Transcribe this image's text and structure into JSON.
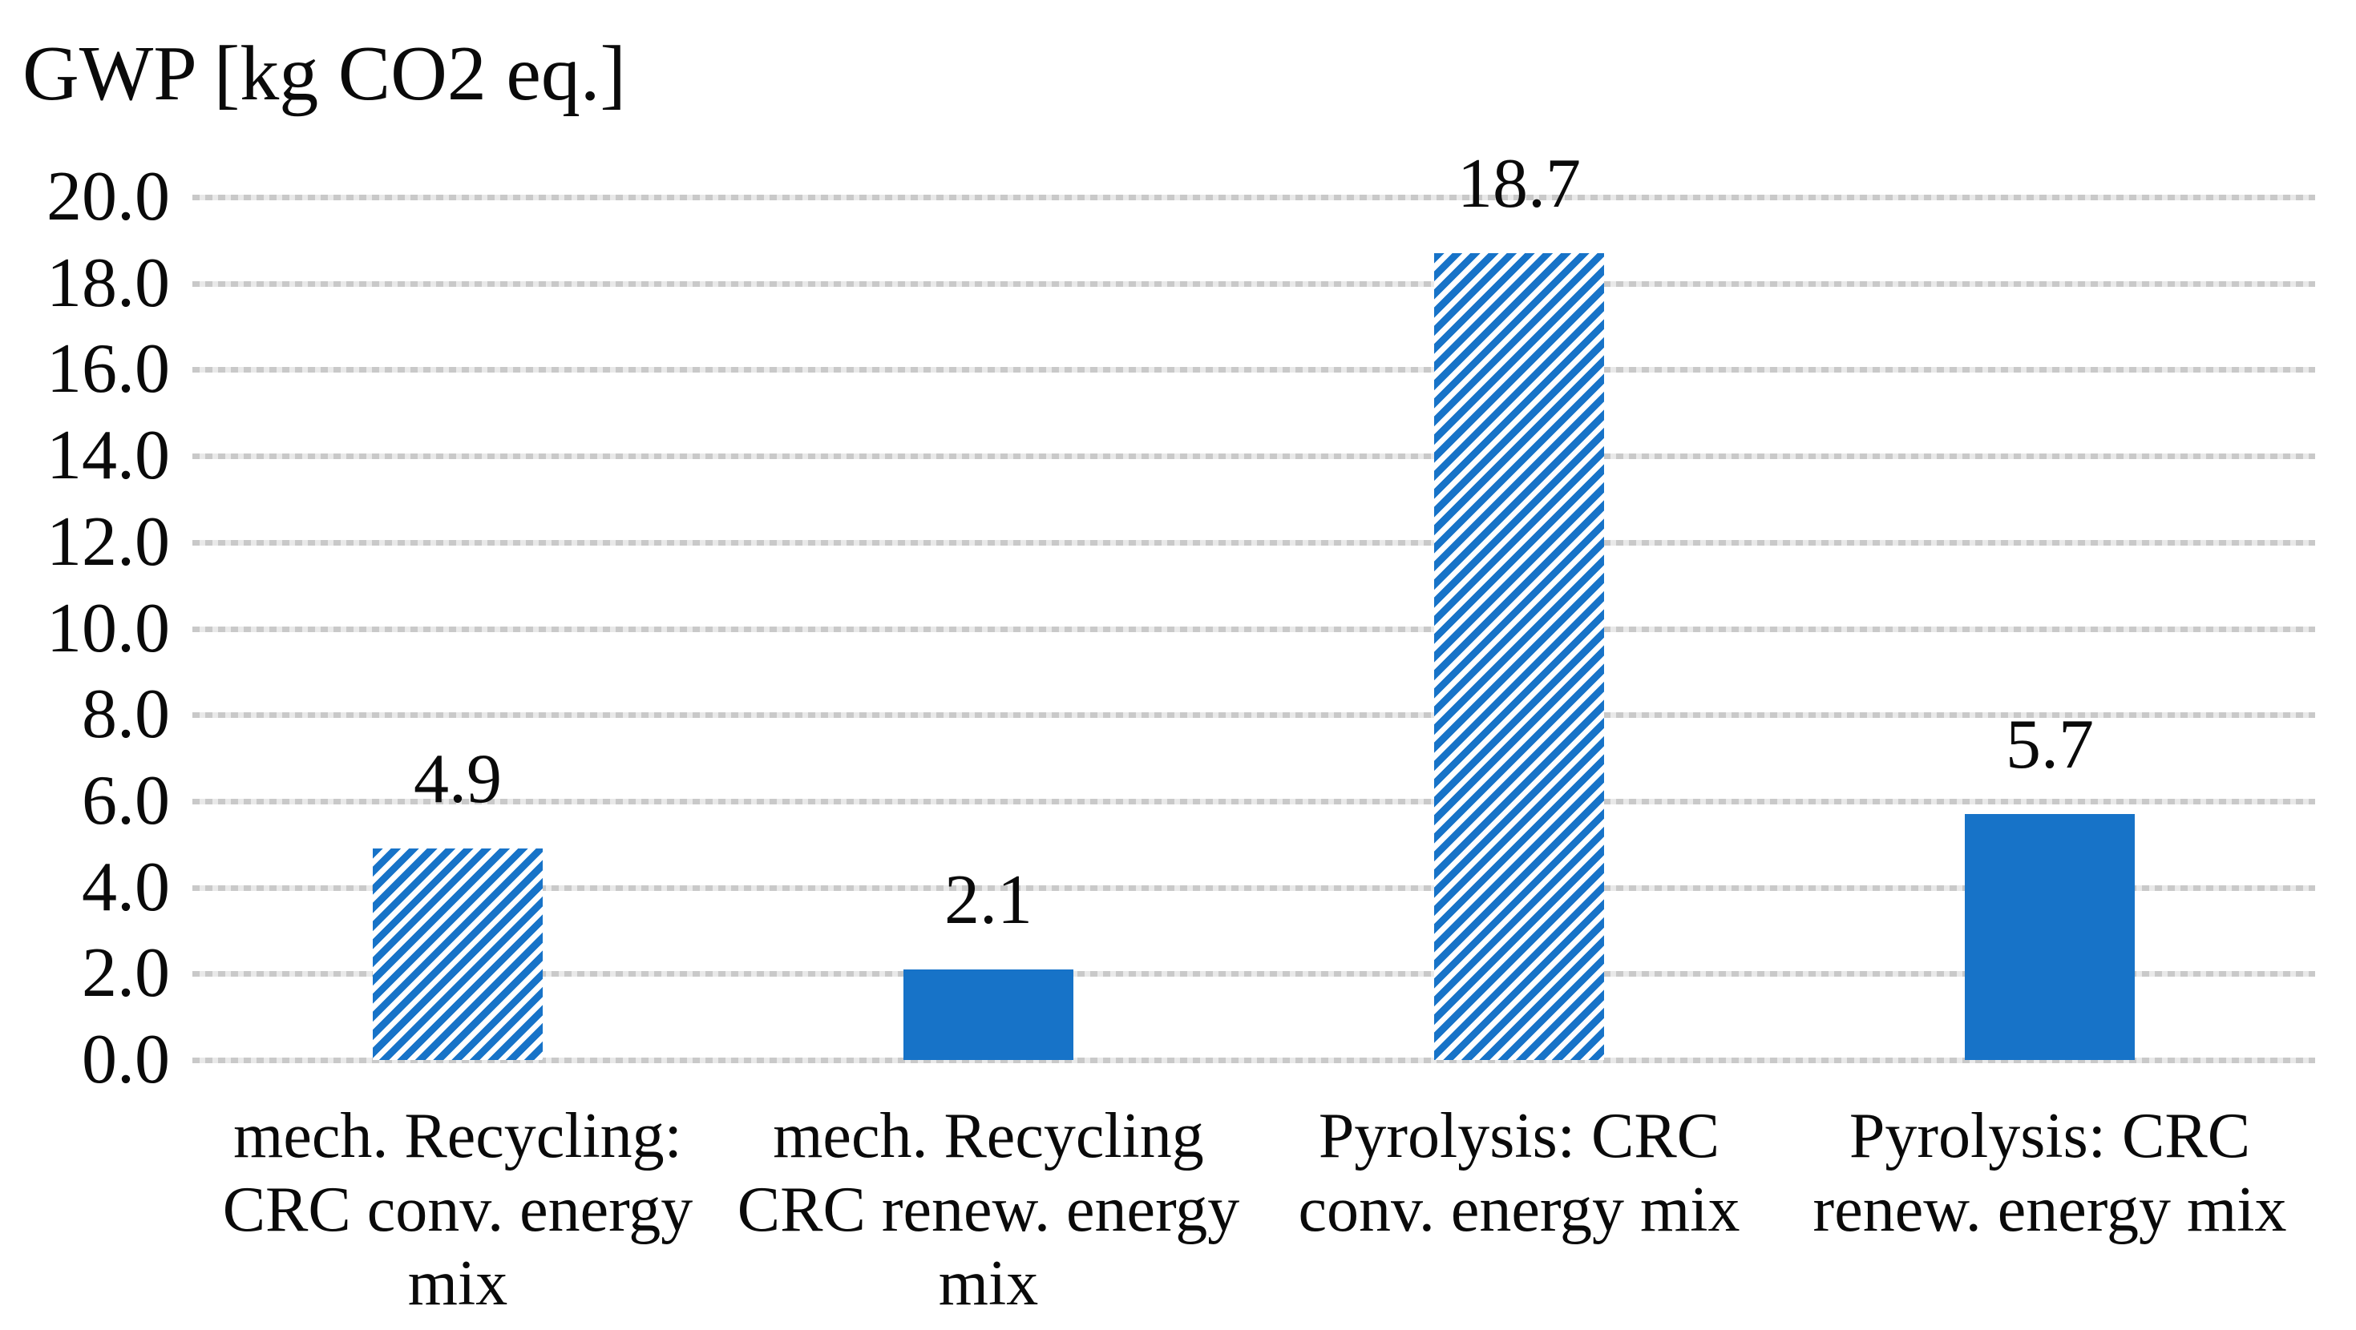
{
  "title": "GWP [kg CO2 eq.]",
  "colors": {
    "bar_blue": "#1773C8",
    "gridline_dark": "#c9c9c9",
    "gridline_light": "#e9e9e9",
    "text": "#0a0a0a"
  },
  "chart_data": {
    "type": "bar",
    "title": "GWP [kg CO2 eq.]",
    "xlabel": "",
    "ylabel": "GWP [kg CO2 eq.]",
    "ylim": [
      0,
      20
    ],
    "ytick_step": 2.0,
    "ytick_labels": [
      "20.0",
      "18.0",
      "16.0",
      "14.0",
      "12.0",
      "10.0",
      "8.0",
      "6.0",
      "4.0",
      "2.0",
      "0.0"
    ],
    "grid": true,
    "gridline_style": "dotted",
    "legend_position": "none",
    "categories": [
      "mech. Recycling: CRC conv. energy mix",
      "mech. Recycling CRC renew. energy mix",
      "Pyrolysis: CRC conv. energy mix",
      "Pyrolysis: CRC renew. energy mix"
    ],
    "category_lines": [
      [
        "mech. Recycling:",
        "CRC conv. energy",
        "mix"
      ],
      [
        "mech. Recycling",
        "CRC renew. energy",
        "mix"
      ],
      [
        "Pyrolysis: CRC",
        "conv. energy mix"
      ],
      [
        "Pyrolysis: CRC",
        "renew. energy mix"
      ]
    ],
    "values": [
      4.9,
      2.1,
      18.7,
      5.7
    ],
    "value_labels": [
      "4.9",
      "2.1",
      "18.7",
      "5.7"
    ],
    "bar_patterns": [
      "hatched",
      "solid",
      "hatched",
      "solid"
    ]
  }
}
